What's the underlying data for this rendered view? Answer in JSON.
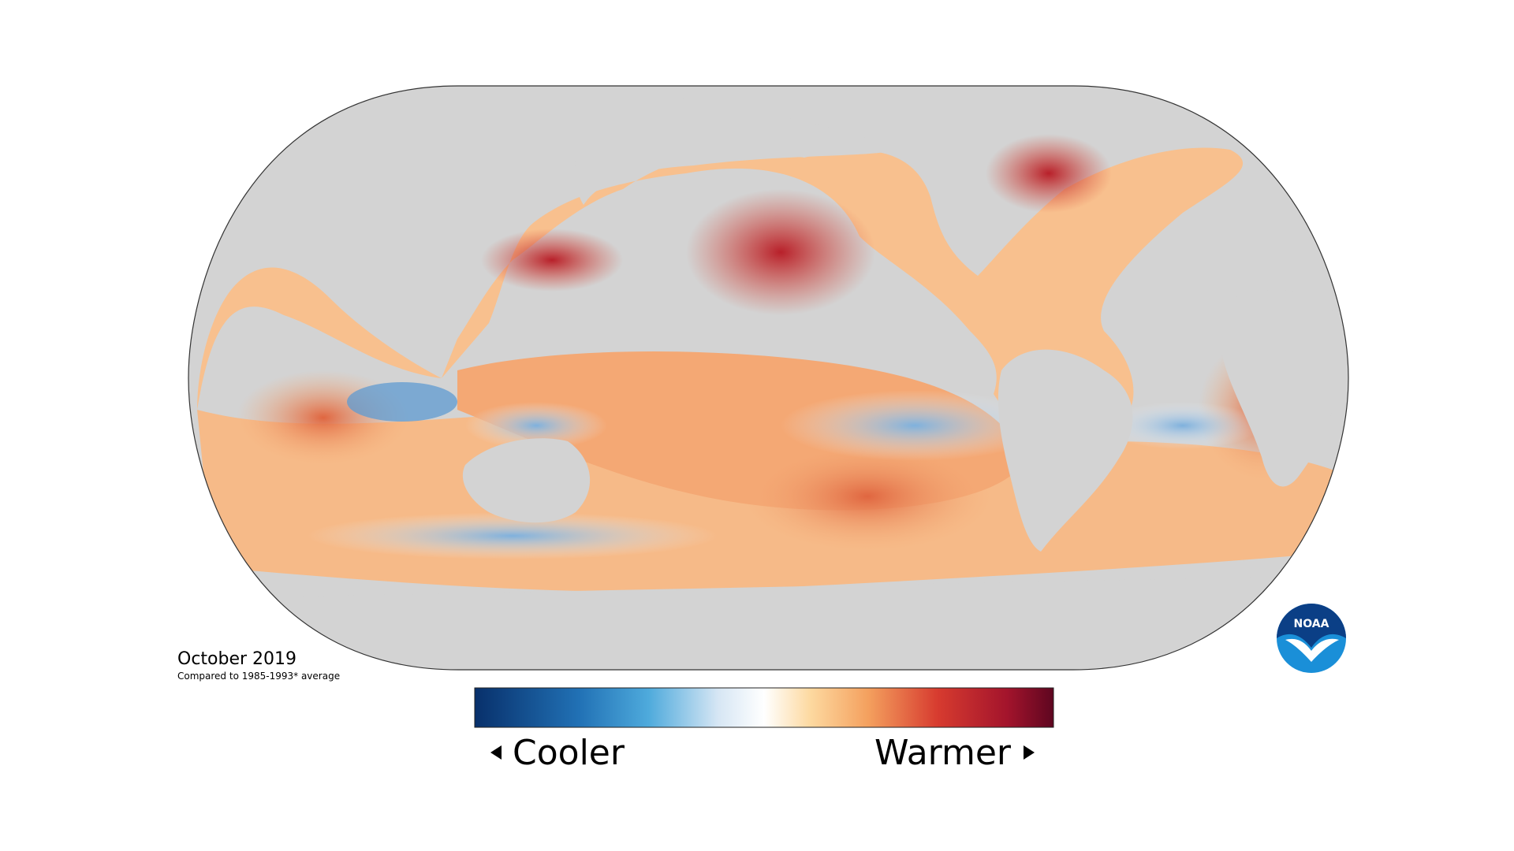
{
  "map": {
    "date": "October 2019",
    "caption": "Compared to 1985-1993* average"
  },
  "legend": {
    "low_label": "Cooler",
    "high_label": "Warmer"
  },
  "logo": {
    "label": "NOAA"
  }
}
